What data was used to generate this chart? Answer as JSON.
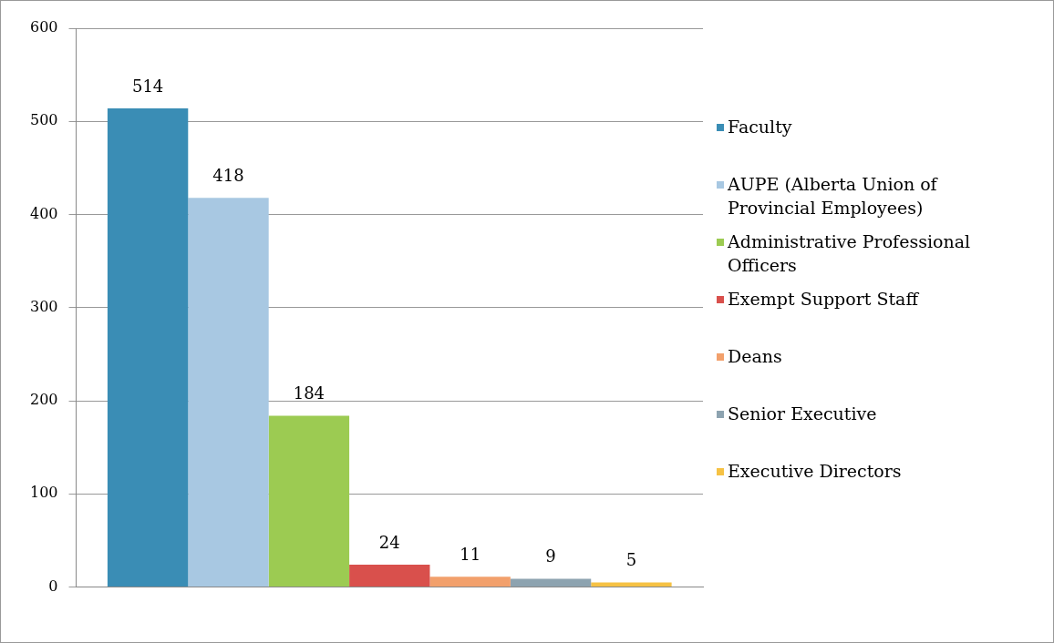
{
  "chart_data": {
    "type": "bar",
    "categories": [
      null
    ],
    "series": [
      {
        "name": "Faculty",
        "color": "#3a8db5",
        "values": [
          514
        ]
      },
      {
        "name": "AUPE (Alberta Union of Provincial Employees)",
        "color": "#a8c8e2",
        "values": [
          418
        ]
      },
      {
        "name": "Administrative Professional Officers",
        "color": "#9ccb52",
        "values": [
          184
        ]
      },
      {
        "name": "Exempt Support Staff",
        "color": "#d9504c",
        "values": [
          24
        ]
      },
      {
        "name": "Deans",
        "color": "#f2a06c",
        "values": [
          11
        ]
      },
      {
        "name": "Senior Executive",
        "color": "#8da3b0",
        "values": [
          9
        ]
      },
      {
        "name": "Executive Directors",
        "color": "#f6c244",
        "values": [
          5
        ]
      }
    ],
    "ylim": [
      0,
      600
    ],
    "yticks": [
      0,
      100,
      200,
      300,
      400,
      500,
      600
    ],
    "grid": "y",
    "legend": "right",
    "data_labels": true
  }
}
